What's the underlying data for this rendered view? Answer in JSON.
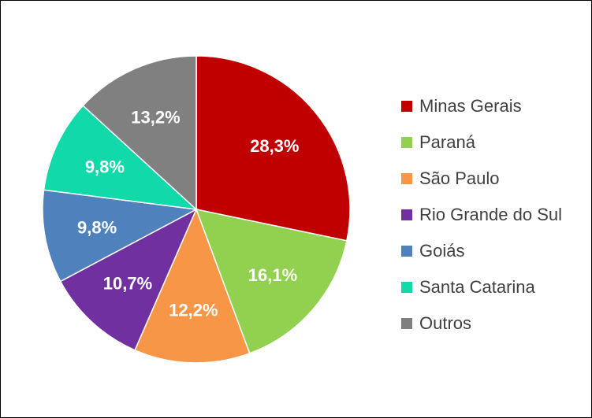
{
  "chart_data": {
    "type": "pie",
    "categories": [
      "Minas Gerais",
      "Paraná",
      "São Paulo",
      "Rio Grande do Sul",
      "Goiás",
      "Santa Catarina",
      "Outros"
    ],
    "values": [
      28.3,
      16.1,
      12.2,
      10.7,
      9.8,
      9.8,
      13.2
    ],
    "labels": [
      "28,3%",
      "16,1%",
      "12,2%",
      "10,7%",
      "9,8%",
      "9,8%",
      "13,2%"
    ],
    "colors": [
      "#c00000",
      "#92d050",
      "#f79646",
      "#7030a0",
      "#4f81bd",
      "#12d9a9",
      "#808080"
    ],
    "legend_position": "right",
    "start_angle": "12 o'clock",
    "direction": "clockwise"
  }
}
